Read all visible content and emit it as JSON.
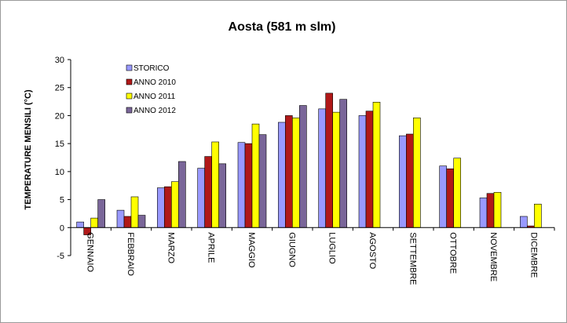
{
  "chart_data": {
    "type": "bar",
    "title": "Aosta (581 m slm)",
    "ylabel": "TEMPERATURE MENSILI (°C)",
    "xlabel": "",
    "ylim": [
      -5,
      30
    ],
    "yticks": [
      -5,
      0,
      5,
      10,
      15,
      20,
      25,
      30
    ],
    "grid": false,
    "legend_position": "top-left",
    "categories": [
      "GENNAIO",
      "FEBBRAIO",
      "MARZO",
      "APRILE",
      "MAGGIO",
      "GIUGNO",
      "LUGLIO",
      "AGOSTO",
      "SETTEMBRE",
      "OTTOBRE",
      "NOVEMBRE",
      "DICEMBRE"
    ],
    "series": [
      {
        "name": "STORICO",
        "color": "#9999ff",
        "values": [
          1.0,
          3.1,
          7.1,
          10.6,
          15.2,
          18.8,
          21.2,
          20.0,
          16.4,
          11.0,
          5.3,
          2.0
        ]
      },
      {
        "name": "ANNO 2010",
        "color": "#b01818",
        "values": [
          -1.3,
          2.0,
          7.3,
          12.7,
          15.0,
          20.0,
          24.0,
          20.8,
          16.7,
          10.5,
          6.1,
          0.3
        ]
      },
      {
        "name": "ANNO 2011",
        "color": "#ffff00",
        "values": [
          1.7,
          5.5,
          8.2,
          15.3,
          18.5,
          19.6,
          20.6,
          22.4,
          19.6,
          12.4,
          6.3,
          4.2
        ]
      },
      {
        "name": "ANNO 2012",
        "color": "#7a6699",
        "values": [
          5.0,
          2.2,
          11.8,
          11.4,
          16.6,
          21.8,
          22.9,
          null,
          null,
          null,
          null,
          null
        ]
      }
    ]
  }
}
